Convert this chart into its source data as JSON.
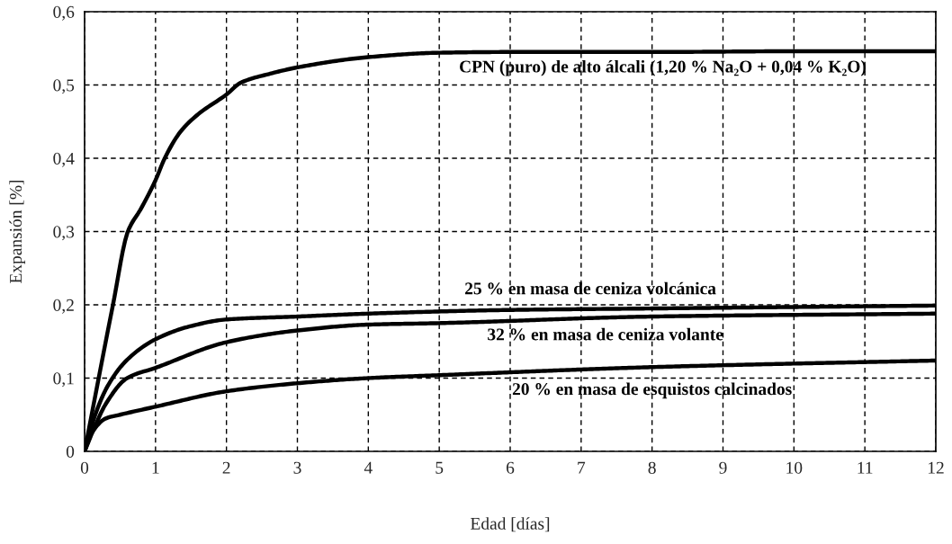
{
  "chart_data": {
    "type": "line",
    "xlabel": "Edad [días]",
    "ylabel": "Expansión [%]",
    "xlim": [
      0,
      12
    ],
    "ylim": [
      0,
      0.6
    ],
    "xticks": [
      0,
      1,
      2,
      3,
      4,
      5,
      6,
      7,
      8,
      9,
      10,
      11,
      12
    ],
    "yticks": [
      0,
      {
        "value": 0.1,
        "label": "0,1"
      },
      {
        "value": 0.2,
        "label": "0,2"
      },
      {
        "value": 0.3,
        "label": "0,3"
      },
      {
        "value": 0.4,
        "label": "0,4"
      },
      {
        "value": 0.5,
        "label": "0,5"
      },
      {
        "value": 0.6,
        "label": "0,6"
      }
    ],
    "grid": true,
    "line_style": "solid",
    "marker": "none",
    "series": [
      {
        "color": "#000000",
        "x": [
          0,
          0.4,
          0.61,
          0.8,
          1,
          1.13,
          1.35,
          1.6,
          2,
          2.2,
          2.6,
          3,
          4,
          5,
          6,
          8,
          10,
          12
        ],
        "name": "CPN (puro) de alto álcali (1,20 % Na₂O + 0,04 % K₂O)",
        "values": [
          0,
          0.2,
          0.3,
          0.332,
          0.37,
          0.4,
          0.436,
          0.46,
          0.487,
          0.503,
          0.515,
          0.524,
          0.538,
          0.544,
          0.545,
          0.545,
          0.546,
          0.546
        ]
      },
      {
        "color": "#000000",
        "x": [
          0,
          0.15,
          0.33,
          0.6,
          1,
          1.5,
          2,
          3,
          4,
          6,
          8,
          10,
          12
        ],
        "name": "25 % en masa de ceniza volcánica",
        "values": [
          0,
          0.05,
          0.09,
          0.125,
          0.153,
          0.171,
          0.18,
          0.184,
          0.188,
          0.193,
          0.195,
          0.197,
          0.199
        ]
      },
      {
        "color": "#000000",
        "x": [
          0,
          0.15,
          0.3,
          0.6,
          1,
          2,
          3,
          4,
          5,
          8,
          12
        ],
        "name": "32 % en masa de ceniza volante",
        "values": [
          0,
          0.035,
          0.065,
          0.1,
          0.114,
          0.149,
          0.165,
          0.173,
          0.175,
          0.184,
          0.188
        ]
      },
      {
        "color": "#000000",
        "x": [
          0,
          0.1,
          0.3,
          0.5,
          1,
          2,
          3,
          4,
          5,
          8,
          12
        ],
        "name": "20 % en masa de esquistos calcinados",
        "values": [
          0,
          0.025,
          0.045,
          0.05,
          0.061,
          0.082,
          0.093,
          0.1,
          0.104,
          0.115,
          0.124
        ]
      }
    ]
  }
}
